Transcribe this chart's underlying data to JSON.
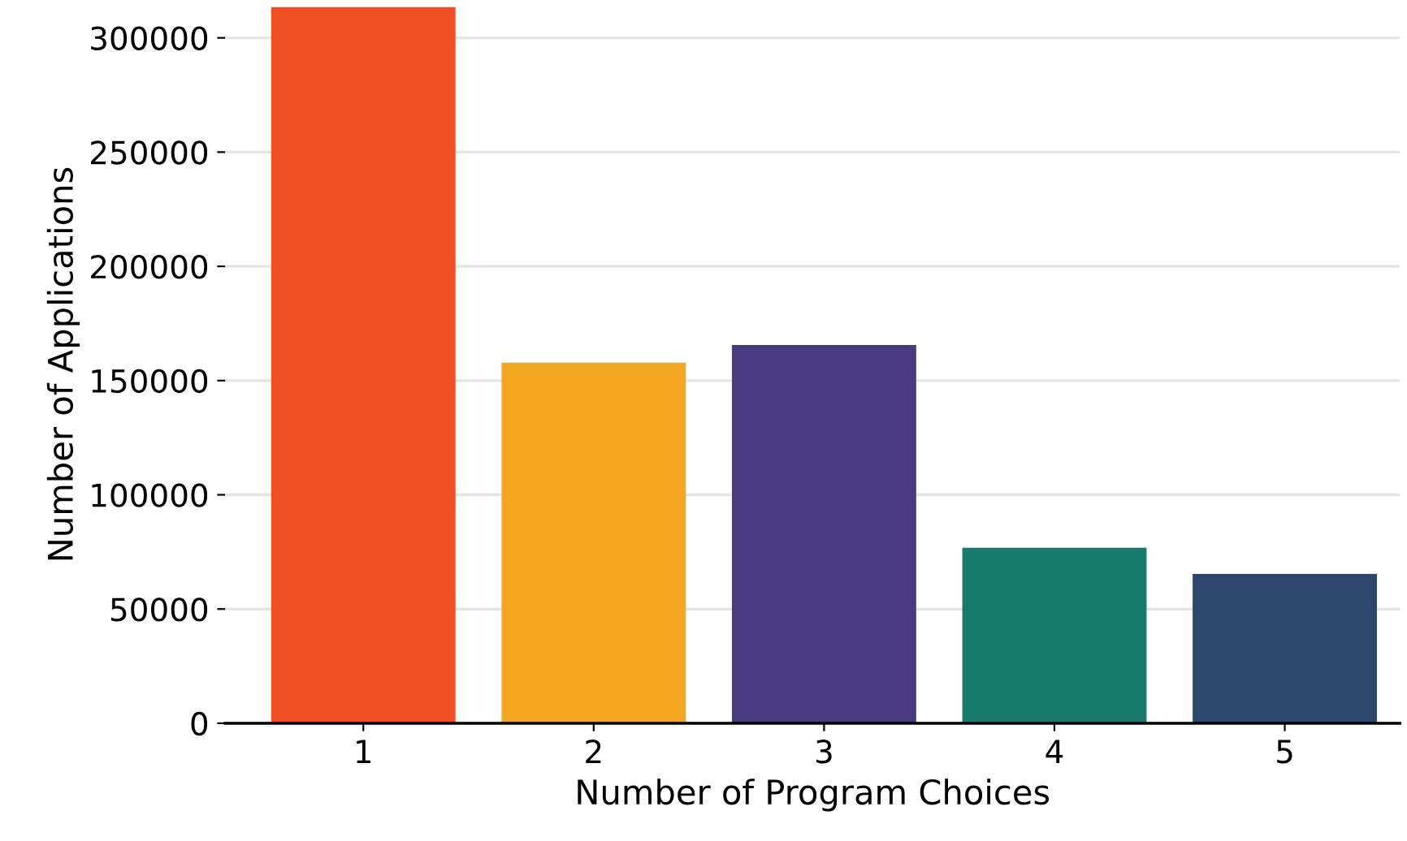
{
  "chart_data": {
    "type": "bar",
    "xlabel": "Number of Program Choices",
    "ylabel": "Number of Applications",
    "categories": [
      "1",
      "2",
      "3",
      "4",
      "5"
    ],
    "values": [
      313500,
      157800,
      165600,
      76800,
      65400
    ],
    "colors": [
      "#f04e23",
      "#f2a621",
      "#4a3a7f",
      "#177a6d",
      "#2c476b"
    ],
    "ylim": [
      0,
      314000
    ],
    "yticks": [
      0,
      50000,
      100000,
      150000,
      200000,
      250000,
      300000
    ],
    "grid": "y",
    "legend": false
  }
}
